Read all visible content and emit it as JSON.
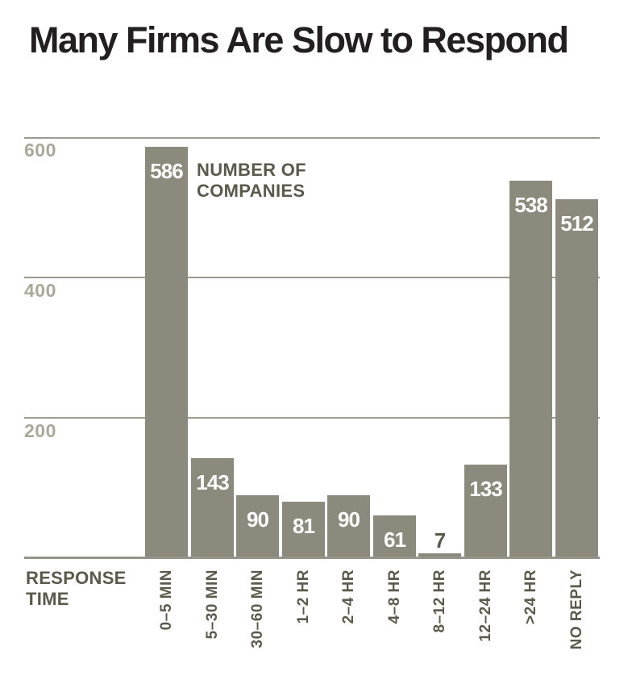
{
  "header": {
    "title": "Many Firms Are Slow to Respond"
  },
  "chart_data": {
    "type": "bar",
    "title": "Many Firms Are Slow to Respond",
    "categories": [
      "0–5 MIN",
      "5–30 MIN",
      "30–60 MIN",
      "1–2 HR",
      "2–4 HR",
      "4–8 HR",
      "8–12 HR",
      "12–24 HR",
      ">24 HR",
      "NO REPLY"
    ],
    "values": [
      586,
      143,
      90,
      81,
      90,
      61,
      7,
      133,
      538,
      512
    ],
    "value_labels": [
      "586",
      "143",
      "90",
      "81",
      "90",
      "61",
      "7",
      "133",
      "538",
      "512"
    ],
    "ylabel": "NUMBER OF COMPANIES",
    "xlabel": "RESPONSE TIME",
    "yticks": [
      600,
      400,
      200
    ],
    "ytick_labels": [
      "600",
      "400",
      "200"
    ],
    "ylim": [
      0,
      600
    ],
    "grid": true,
    "legend_position": "none",
    "bar_label_placement": "inside-top, outside above bar when value is small"
  },
  "colors": {
    "background": "#ffffff",
    "bar": "#8b8a7c",
    "title_text": "#231f20",
    "annotation_text": "#5b594b",
    "ytick_text": "#aaa89b",
    "gridline": "#9d9b8d",
    "bar_value_text": "#ffffff"
  }
}
